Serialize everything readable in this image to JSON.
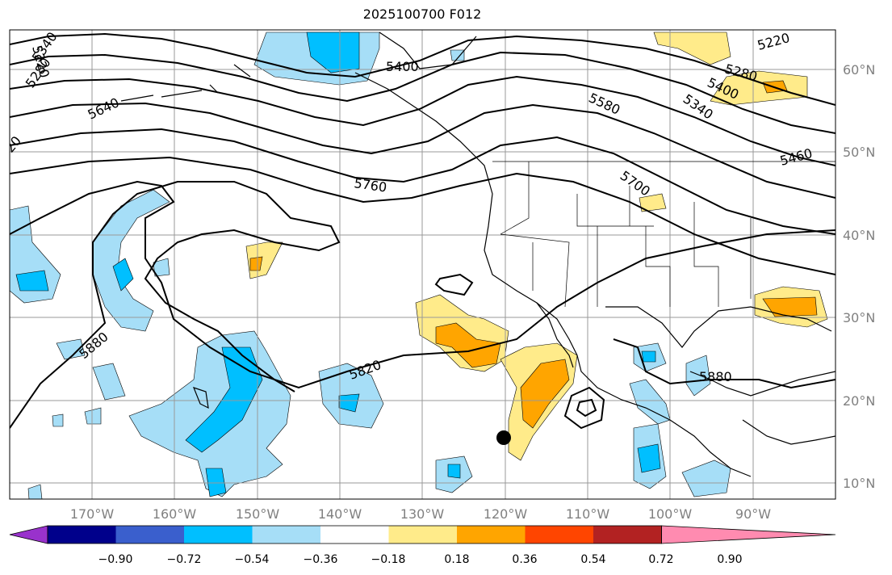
{
  "title": "2025100700 F012",
  "chart_data": {
    "type": "map",
    "title": "2025100700 F012",
    "lon_range": [
      -180,
      -80
    ],
    "lat_range": [
      8,
      65
    ],
    "lon_ticks": [
      "170°W",
      "160°W",
      "150°W",
      "140°W",
      "130°W",
      "120°W",
      "110°W",
      "100°W",
      "90°W"
    ],
    "lat_ticks": [
      "60°N",
      "50°N",
      "40°N",
      "30°N",
      "20°N",
      "10°N"
    ],
    "contour_labels": [
      "5400",
      "5640",
      "5760",
      "5880",
      "5820",
      "5580",
      "5700",
      "5220",
      "5280",
      "5340",
      "5400",
      "5460",
      "5880",
      "5340",
      "5280",
      "5220",
      "20"
    ],
    "marker": {
      "lon": -120.0,
      "lat": 15.5
    },
    "colorbar": {
      "ticks": [
        "−0.90",
        "−0.72",
        "−0.54",
        "−0.36",
        "−0.18",
        "0.18",
        "0.36",
        "0.54",
        "0.72",
        "0.90"
      ],
      "colors": [
        "#9932cc",
        "#00008b",
        "#3a5fcd",
        "#00bfff",
        "#a6def7",
        "#ffffff",
        "#ffeb8a",
        "#ffa500",
        "#ff4500",
        "#b22222",
        "#ff8bb0"
      ]
    }
  }
}
